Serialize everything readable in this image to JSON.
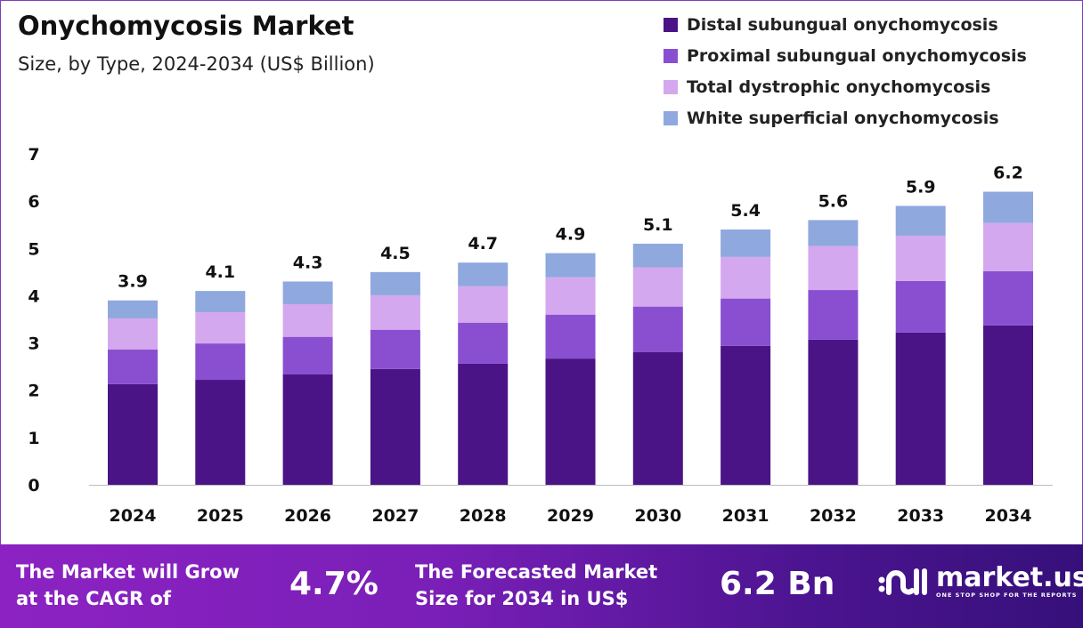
{
  "chart_data": {
    "type": "bar",
    "stacked": true,
    "title": "Onychomycosis Market",
    "subtitle": "Size, by Type, 2024-2034 (US$ Billion)",
    "xlabel": "",
    "ylabel": "",
    "ylim": [
      0,
      7
    ],
    "yticks": [
      "0",
      "1",
      "2",
      "3",
      "4",
      "5",
      "6",
      "7"
    ],
    "grid": false,
    "legend_position": "top-right",
    "categories": [
      "2024",
      "2025",
      "2026",
      "2027",
      "2028",
      "2029",
      "2030",
      "2031",
      "2032",
      "2033",
      "2034"
    ],
    "totals": [
      "3.9",
      "4.1",
      "4.3",
      "4.5",
      "4.7",
      "4.9",
      "5.1",
      "5.4",
      "5.6",
      "5.9",
      "6.2"
    ],
    "series": [
      {
        "name": "Distal subungual onychomycosis",
        "color": "#4a1486",
        "values": [
          2.13,
          2.22,
          2.34,
          2.45,
          2.56,
          2.67,
          2.81,
          2.94,
          3.07,
          3.22,
          3.37
        ]
      },
      {
        "name": "Proximal subungual onychomycosis",
        "color": "#8a4fd0",
        "values": [
          0.73,
          0.77,
          0.79,
          0.83,
          0.87,
          0.93,
          0.96,
          1.0,
          1.05,
          1.09,
          1.15
        ]
      },
      {
        "name": "Total dystrophic onychomycosis",
        "color": "#d4a8ee",
        "values": [
          0.66,
          0.66,
          0.69,
          0.73,
          0.77,
          0.79,
          0.83,
          0.88,
          0.93,
          0.96,
          1.02
        ]
      },
      {
        "name": "White superficial onychomycosis",
        "color": "#8fa8de",
        "values": [
          0.38,
          0.45,
          0.48,
          0.49,
          0.5,
          0.51,
          0.5,
          0.58,
          0.55,
          0.63,
          0.66
        ]
      }
    ]
  },
  "banner": {
    "cagr_label_1": "The Market will Grow",
    "cagr_label_2": "at the CAGR of",
    "cagr_value": "4.7%",
    "forecast_label_1": "The Forecasted Market",
    "forecast_label_2": "Size for 2034 in US$",
    "forecast_value": "6.2 Bn",
    "logo_name": "market.us",
    "logo_tagline": "ONE STOP SHOP FOR THE REPORTS"
  }
}
